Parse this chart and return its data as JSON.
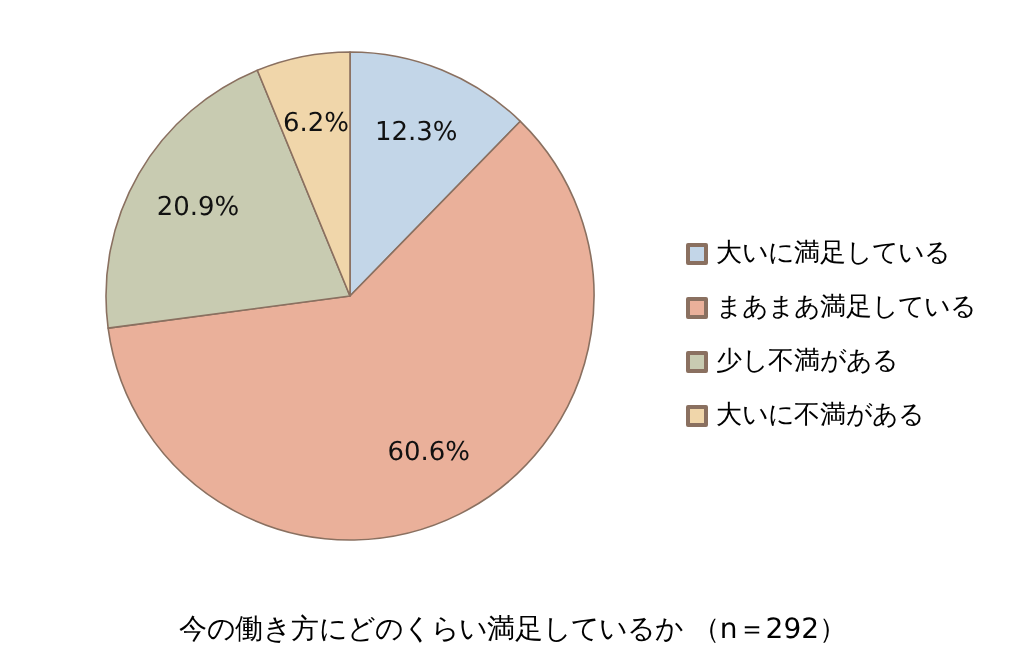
{
  "chart_data": {
    "type": "pie",
    "title": "今の働き方にどのくらい満足しているか （n＝292）",
    "categories": [
      "大いに満足している",
      "まあまあ満足している",
      "少し不満がある",
      "大いに不満がある"
    ],
    "values": [
      12.3,
      60.6,
      20.9,
      6.2
    ],
    "value_labels": [
      "12.3%",
      "60.6%",
      "20.9%",
      "6.2%"
    ],
    "colors": [
      "#c3d6e8",
      "#eab09a",
      "#c8cbb1",
      "#f0d6aa"
    ],
    "legend": "right"
  }
}
